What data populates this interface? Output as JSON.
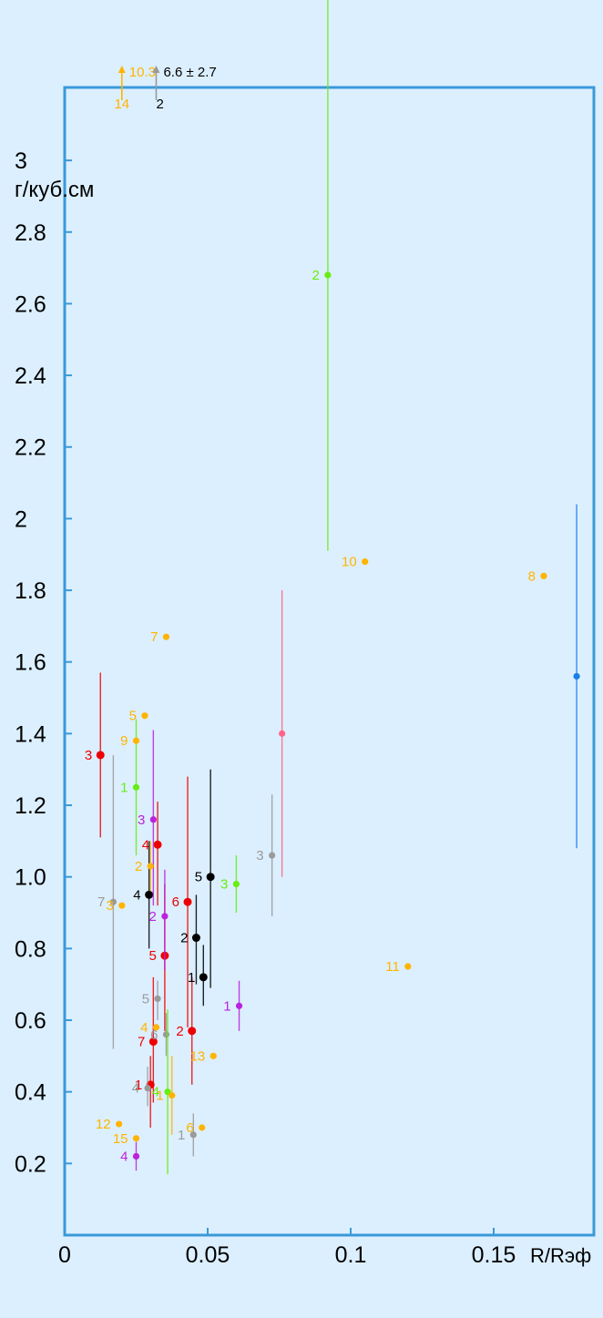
{
  "chart_data": {
    "type": "scatter",
    "title": "",
    "xlabel": "R/Rэф",
    "ylabel": "г/куб.см",
    "xlim": [
      0,
      0.18
    ],
    "ylim": [
      0,
      3
    ],
    "x_ticks": [
      {
        "value": 0,
        "label": "0"
      },
      {
        "value": 0.05,
        "label": "0.05"
      },
      {
        "value": 0.1,
        "label": "0.1"
      },
      {
        "value": 0.15,
        "label": "0.15"
      }
    ],
    "y_ticks": [
      {
        "value": 0.2,
        "label": "0.2"
      },
      {
        "value": 0.4,
        "label": "0.4"
      },
      {
        "value": 0.6,
        "label": "0.6"
      },
      {
        "value": 0.8,
        "label": "0.8"
      },
      {
        "value": 1.0,
        "label": "1.0"
      },
      {
        "value": 1.2,
        "label": "1.2"
      },
      {
        "value": 1.4,
        "label": "1.4"
      },
      {
        "value": 1.6,
        "label": "1.6"
      },
      {
        "value": 1.8,
        "label": "1.8"
      },
      {
        "value": 2.0,
        "label": "2"
      },
      {
        "value": 2.2,
        "label": "2.2"
      },
      {
        "value": 2.4,
        "label": "2.4"
      },
      {
        "value": 2.6,
        "label": "2.6"
      },
      {
        "value": 2.8,
        "label": "2.8"
      },
      {
        "value": 3.0,
        "label": "3"
      }
    ],
    "colors": {
      "frame": "#3a9ad9",
      "text": "#000000",
      "red": "#ee0000",
      "black": "#000000",
      "grey": "#9a9a9a",
      "green": "#66ee11",
      "purple": "#bb22dd",
      "orange": "#ffb400",
      "pink": "#ff6688",
      "blue": "#1a7ee6"
    },
    "series": [
      {
        "color": "red",
        "points": [
          {
            "label": "1",
            "x": 0.03,
            "y": 0.42,
            "ylo": 0.3,
            "yhi": 0.5
          },
          {
            "label": "2",
            "x": 0.0445,
            "y": 0.57,
            "ylo": 0.42,
            "yhi": 0.72
          },
          {
            "label": "3",
            "x": 0.0125,
            "y": 1.34,
            "ylo": 1.11,
            "yhi": 1.57
          },
          {
            "label": "4",
            "x": 0.0325,
            "y": 1.09,
            "ylo": 0.92,
            "yhi": 1.21
          },
          {
            "label": "5",
            "x": 0.035,
            "y": 0.78,
            "ylo": 0.57,
            "yhi": 0.98
          },
          {
            "label": "6",
            "x": 0.043,
            "y": 0.93,
            "ylo": 0.58,
            "yhi": 1.28
          },
          {
            "label": "7",
            "x": 0.031,
            "y": 0.54,
            "ylo": 0.37,
            "yhi": 0.72
          }
        ]
      },
      {
        "color": "black",
        "points": [
          {
            "label": "1",
            "x": 0.0485,
            "y": 0.72,
            "ylo": 0.64,
            "yhi": 0.81
          },
          {
            "label": "2",
            "x": 0.046,
            "y": 0.83,
            "ylo": 0.7,
            "yhi": 0.95
          },
          {
            "label": "4",
            "x": 0.0295,
            "y": 0.95,
            "ylo": 0.8,
            "yhi": 1.1
          },
          {
            "label": "5",
            "x": 0.051,
            "y": 1.0,
            "ylo": 0.69,
            "yhi": 1.3
          }
        ]
      },
      {
        "color": "grey",
        "points": [
          {
            "label": "1",
            "x": 0.045,
            "y": 0.28,
            "ylo": 0.22,
            "yhi": 0.34
          },
          {
            "label": "3",
            "x": 0.0725,
            "y": 1.06,
            "ylo": 0.89,
            "yhi": 1.23
          },
          {
            "label": "4",
            "x": 0.029,
            "y": 0.41,
            "ylo": 0.36,
            "yhi": 0.47
          },
          {
            "label": "5",
            "x": 0.0325,
            "y": 0.66,
            "ylo": 0.6,
            "yhi": 0.71
          },
          {
            "label": "6",
            "x": 0.0355,
            "y": 0.56,
            "ylo": 0.5,
            "yhi": 0.62
          },
          {
            "label": "7",
            "x": 0.017,
            "y": 0.93,
            "ylo": 0.52,
            "yhi": 1.34
          }
        ]
      },
      {
        "color": "green",
        "points": [
          {
            "label": "1",
            "x": 0.025,
            "y": 1.25,
            "ylo": 1.06,
            "yhi": 1.44
          },
          {
            "label": "2",
            "x": 0.092,
            "y": 2.68,
            "ylo": 1.91,
            "yhi": 3.45
          },
          {
            "label": "3",
            "x": 0.06,
            "y": 0.98,
            "ylo": 0.9,
            "yhi": 1.06
          },
          {
            "label": "4",
            "x": 0.036,
            "y": 0.4,
            "ylo": 0.17,
            "yhi": 0.63
          }
        ]
      },
      {
        "color": "purple",
        "points": [
          {
            "label": "1",
            "x": 0.061,
            "y": 0.64,
            "ylo": 0.57,
            "yhi": 0.71
          },
          {
            "label": "2",
            "x": 0.035,
            "y": 0.89,
            "ylo": 0.74,
            "yhi": 1.02
          },
          {
            "label": "3",
            "x": 0.031,
            "y": 1.16,
            "ylo": 0.92,
            "yhi": 1.41
          },
          {
            "label": "4",
            "x": 0.025,
            "y": 0.22,
            "ylo": 0.18,
            "yhi": 0.26
          }
        ]
      },
      {
        "color": "orange",
        "points": [
          {
            "label": "1",
            "x": 0.0375,
            "y": 0.39,
            "ylo": 0.28,
            "yhi": 0.5
          },
          {
            "label": "2",
            "x": 0.03,
            "y": 1.03,
            "ylo": 0.96,
            "yhi": 1.1
          },
          {
            "label": "3",
            "x": 0.02,
            "y": 0.92
          },
          {
            "label": "4",
            "x": 0.032,
            "y": 0.58
          },
          {
            "label": "5",
            "x": 0.028,
            "y": 1.45
          },
          {
            "label": "6",
            "x": 0.048,
            "y": 0.3
          },
          {
            "label": "7",
            "x": 0.0355,
            "y": 1.67
          },
          {
            "label": "8",
            "x": 0.1675,
            "y": 1.84
          },
          {
            "label": "9",
            "x": 0.025,
            "y": 1.38
          },
          {
            "label": "10",
            "x": 0.105,
            "y": 1.88
          },
          {
            "label": "11",
            "x": 0.12,
            "y": 0.75
          },
          {
            "label": "12",
            "x": 0.019,
            "y": 0.31
          },
          {
            "label": "13",
            "x": 0.052,
            "y": 0.5
          },
          {
            "label": "15",
            "x": 0.025,
            "y": 0.27
          }
        ]
      },
      {
        "color": "pink",
        "points": [
          {
            "label": "",
            "x": 0.076,
            "y": 1.4,
            "ylo": 1.0,
            "yhi": 1.8
          }
        ]
      },
      {
        "color": "blue",
        "points": [
          {
            "label": "",
            "x": 0.179,
            "y": 1.56,
            "ylo": 1.08,
            "yhi": 2.04
          }
        ]
      }
    ],
    "off_scale": [
      {
        "label": "14",
        "value_label": "10.3",
        "x": 0.02,
        "color": "orange"
      },
      {
        "label": "2",
        "value_label": "6.6 ± 2.7",
        "x": 0.032,
        "color": "grey"
      }
    ]
  }
}
